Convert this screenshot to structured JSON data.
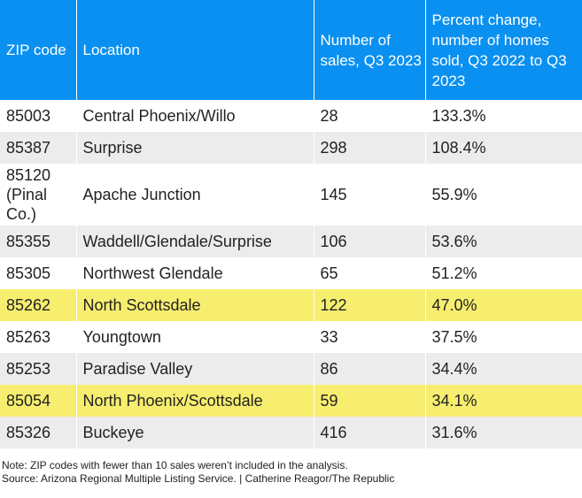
{
  "table": {
    "headers": [
      "ZIP code",
      "Location",
      "Number of sales, Q3 2023",
      "Percent change, number of homes sold, Q3 2022 to Q3 2023"
    ],
    "rows": [
      {
        "zip": "85003",
        "location": "Central Phoenix/Willo",
        "sales": "28",
        "change": "133.3%",
        "highlight": false
      },
      {
        "zip": "85387",
        "location": "Surprise",
        "sales": "298",
        "change": "108.4%",
        "highlight": false
      },
      {
        "zip": "85120 (Pinal Co.)",
        "location": "Apache Junction",
        "sales": "145",
        "change": "55.9%",
        "highlight": false
      },
      {
        "zip": "85355",
        "location": "Waddell/Glendale/Surprise",
        "sales": "106",
        "change": "53.6%",
        "highlight": false
      },
      {
        "zip": "85305",
        "location": "Northwest Glendale",
        "sales": "65",
        "change": "51.2%",
        "highlight": false
      },
      {
        "zip": "85262",
        "location": "North Scottsdale",
        "sales": "122",
        "change": "47.0%",
        "highlight": true
      },
      {
        "zip": "85263",
        "location": "Youngtown",
        "sales": "33",
        "change": "37.5%",
        "highlight": false
      },
      {
        "zip": "85253",
        "location": "Paradise Valley",
        "sales": "86",
        "change": "34.4%",
        "highlight": false
      },
      {
        "zip": "85054",
        "location": "North Phoenix/Scottsdale",
        "sales": "59",
        "change": "34.1%",
        "highlight": true
      },
      {
        "zip": "85326",
        "location": "Buckeye",
        "sales": "416",
        "change": "31.6%",
        "highlight": false
      }
    ]
  },
  "notes": {
    "note": "Note: ZIP codes with fewer than 10 sales weren’t included in the analysis.",
    "source": "Source: Arizona Regional Multiple Listing Service.  | Catherine Reagor/The Republic"
  },
  "colors": {
    "header_bg": "#0a90f0",
    "header_text": "#ffffff",
    "stripe": "#ececec",
    "highlight": "#f7ee6f"
  }
}
